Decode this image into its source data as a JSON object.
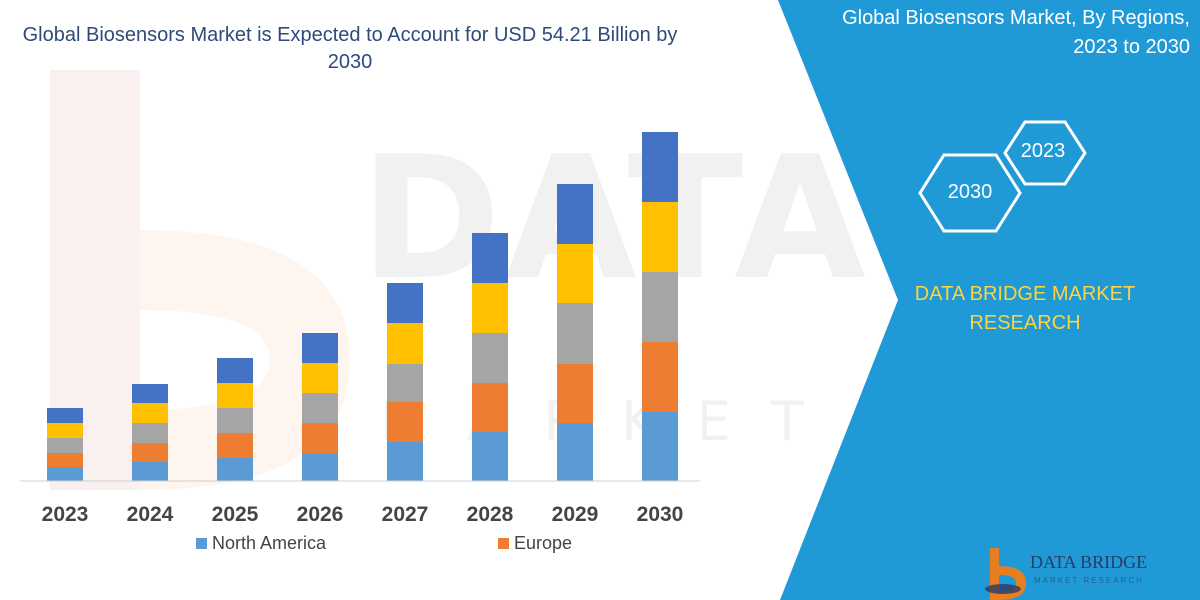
{
  "chart_data": {
    "type": "bar",
    "stacked": true,
    "title": "Global Biosensors Market is Expected to Account for USD 54.21 Billion by 2030",
    "categories": [
      "2023",
      "2024",
      "2025",
      "2026",
      "2027",
      "2028",
      "2029",
      "2030"
    ],
    "series": [
      {
        "name": "North America",
        "color": "#5b9bd5",
        "values": [
          14,
          19,
          23,
          28,
          39,
          49,
          58,
          69
        ]
      },
      {
        "name": "Europe",
        "color": "#ed7d31",
        "values": [
          14,
          19,
          25,
          30,
          40,
          49,
          59,
          70
        ]
      },
      {
        "name": "",
        "color": "#a5a5a5",
        "values": [
          15,
          20,
          25,
          30,
          38,
          50,
          61,
          70
        ]
      },
      {
        "name": "",
        "color": "#ffc000",
        "values": [
          15,
          20,
          25,
          30,
          41,
          50,
          59,
          70
        ]
      },
      {
        "name": "",
        "color": "#4472c4",
        "values": [
          15,
          19,
          25,
          30,
          40,
          50,
          60,
          70
        ]
      }
    ],
    "xlabel": "",
    "ylabel": "",
    "ylim": [
      0,
      360
    ],
    "grid": false,
    "legend": "bottom"
  },
  "panel": {
    "title_line1": "Global Biosensors Market, By Regions,",
    "title_line2": "2023 to 2030",
    "hex_top": "2023",
    "hex_bottom": "2030",
    "brand_line1": "DATA BRIDGE MARKET",
    "brand_line2": "RESEARCH",
    "background": "#1f9ad6",
    "brand_color": "#ffd23f"
  },
  "logo": {
    "name": "DATA BRIDGE",
    "sub": "MARKET RESEARCH",
    "icon": "data-bridge-logo-icon"
  },
  "watermark": {
    "main": "DATA BRIDGE",
    "sub": "MARKET RESEARCH"
  }
}
